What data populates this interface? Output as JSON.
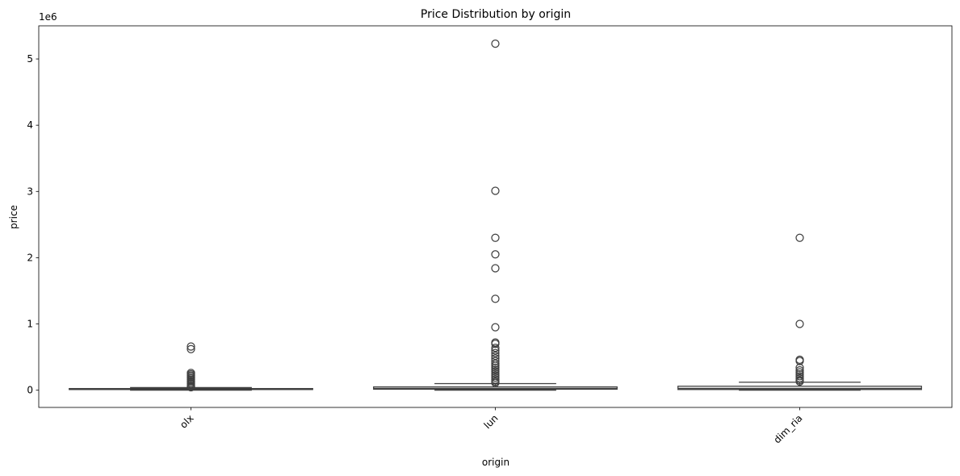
{
  "chart_data": {
    "type": "box",
    "title": "Price Distribution by origin",
    "xlabel": "origin",
    "ylabel": "price",
    "y_offset_label": "1e6",
    "categories": [
      "olx",
      "lun",
      "dim_ria"
    ],
    "ylim": [
      -0.26,
      5.5
    ],
    "yticks": [
      0,
      1,
      2,
      3,
      4,
      5
    ],
    "y_scale_factor": 1000000,
    "x_tick_rotation_deg": 45,
    "grid": false,
    "boxes": [
      {
        "name": "olx",
        "whislo": 0.0,
        "q1": 0.01,
        "median": 0.015,
        "q3": 0.025,
        "whishi": 0.04,
        "fliers": [
          0.66,
          0.62,
          0.26,
          0.24,
          0.22,
          0.2,
          0.18,
          0.16,
          0.14,
          0.12,
          0.1,
          0.08,
          0.06,
          0.05,
          0.045
        ]
      },
      {
        "name": "lun",
        "whislo": 0.0,
        "q1": 0.015,
        "median": 0.025,
        "q3": 0.05,
        "whishi": 0.1,
        "fliers": [
          5.23,
          3.01,
          2.3,
          2.05,
          1.84,
          1.38,
          0.95,
          0.72,
          0.7,
          0.64,
          0.6,
          0.56,
          0.52,
          0.48,
          0.44,
          0.4,
          0.37,
          0.34,
          0.31,
          0.28,
          0.25,
          0.22,
          0.19,
          0.16,
          0.13,
          0.11
        ]
      },
      {
        "name": "dim_ria",
        "whislo": 0.0,
        "q1": 0.01,
        "median": 0.025,
        "q3": 0.06,
        "whishi": 0.12,
        "fliers": [
          2.3,
          1.0,
          0.46,
          0.44,
          0.34,
          0.3,
          0.27,
          0.24,
          0.21,
          0.18,
          0.15,
          0.13
        ]
      }
    ]
  }
}
